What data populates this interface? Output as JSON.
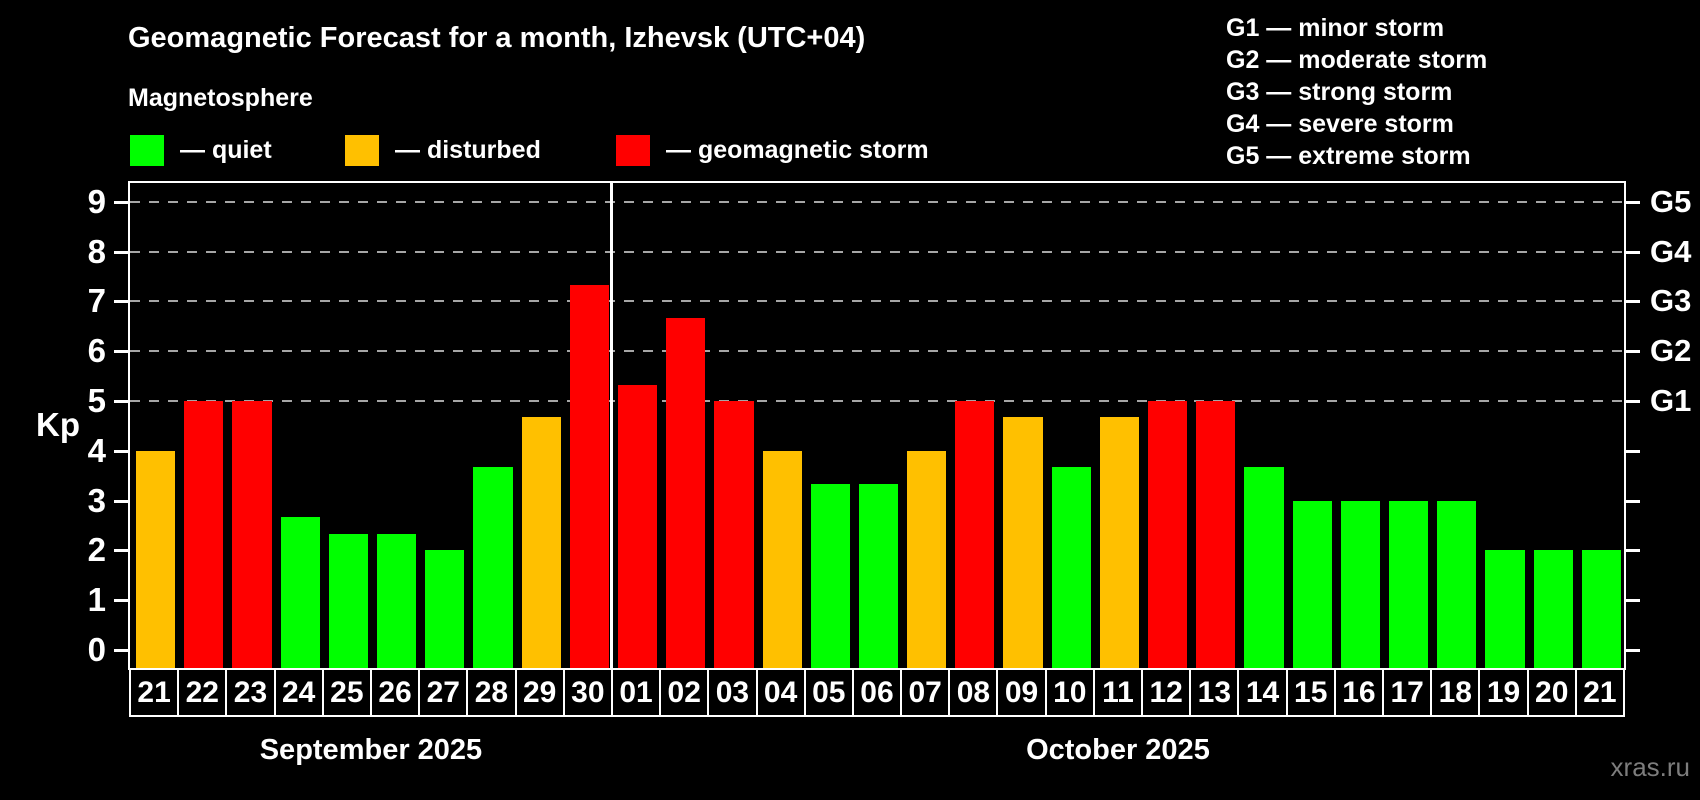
{
  "header": {
    "title": "Geomagnetic Forecast for a month, Izhevsk (UTC+04)",
    "subtitle": "Magnetosphere"
  },
  "legend": {
    "items": [
      {
        "name": "quiet",
        "label": "— quiet",
        "color": "#00ff00"
      },
      {
        "name": "disturbed",
        "label": "— disturbed",
        "color": "#ffc000"
      },
      {
        "name": "storm",
        "label": "— geomagnetic storm",
        "color": "#ff0000"
      }
    ]
  },
  "storm_scale_legend": [
    "G1 — minor storm",
    "G2 — moderate storm",
    "G3 — strong storm",
    "G4 — severe storm",
    "G5 — extreme storm"
  ],
  "watermark": "xras.ru",
  "colors": {
    "background": "#000000",
    "axis": "#ffffff",
    "grid": "#a6a6a6",
    "quiet": "#00ff00",
    "disturbed": "#ffc000",
    "storm": "#ff0000",
    "watermark": "#7d7d7d"
  },
  "chart_data": {
    "type": "bar",
    "title": "Geomagnetic Forecast for a month, Izhevsk (UTC+04)",
    "xlabel": "",
    "ylabel": "Kp",
    "ylim": [
      0,
      9
    ],
    "yticks": [
      0,
      1,
      2,
      3,
      4,
      5,
      6,
      7,
      8,
      9
    ],
    "gridlines_at_kp": [
      5,
      6,
      7,
      8,
      9
    ],
    "grid": "dashed, only at G-storm levels",
    "legend_position": "top",
    "right_axis_labels": [
      {
        "kp": 5,
        "label": "G1"
      },
      {
        "kp": 6,
        "label": "G2"
      },
      {
        "kp": 7,
        "label": "G3"
      },
      {
        "kp": 8,
        "label": "G4"
      },
      {
        "kp": 9,
        "label": "G5"
      }
    ],
    "status_colors": {
      "quiet": "#00ff00",
      "disturbed": "#ffc000",
      "storm": "#ff0000"
    },
    "months": [
      {
        "label": "September 2025",
        "days": 10
      },
      {
        "label": "October 2025",
        "days": 21
      }
    ],
    "bars": [
      {
        "day": "21",
        "month": "September 2025",
        "kp": 4.0,
        "status": "disturbed"
      },
      {
        "day": "22",
        "month": "September 2025",
        "kp": 5.0,
        "status": "storm"
      },
      {
        "day": "23",
        "month": "September 2025",
        "kp": 5.0,
        "status": "storm"
      },
      {
        "day": "24",
        "month": "September 2025",
        "kp": 2.67,
        "status": "quiet"
      },
      {
        "day": "25",
        "month": "September 2025",
        "kp": 2.33,
        "status": "quiet"
      },
      {
        "day": "26",
        "month": "September 2025",
        "kp": 2.33,
        "status": "quiet"
      },
      {
        "day": "27",
        "month": "September 2025",
        "kp": 2.0,
        "status": "quiet"
      },
      {
        "day": "28",
        "month": "September 2025",
        "kp": 3.67,
        "status": "quiet"
      },
      {
        "day": "29",
        "month": "September 2025",
        "kp": 4.67,
        "status": "disturbed"
      },
      {
        "day": "30",
        "month": "September 2025",
        "kp": 7.33,
        "status": "storm"
      },
      {
        "day": "01",
        "month": "October 2025",
        "kp": 5.33,
        "status": "storm"
      },
      {
        "day": "02",
        "month": "October 2025",
        "kp": 6.67,
        "status": "storm"
      },
      {
        "day": "03",
        "month": "October 2025",
        "kp": 5.0,
        "status": "storm"
      },
      {
        "day": "04",
        "month": "October 2025",
        "kp": 4.0,
        "status": "disturbed"
      },
      {
        "day": "05",
        "month": "October 2025",
        "kp": 3.33,
        "status": "quiet"
      },
      {
        "day": "06",
        "month": "October 2025",
        "kp": 3.33,
        "status": "quiet"
      },
      {
        "day": "07",
        "month": "October 2025",
        "kp": 4.0,
        "status": "disturbed"
      },
      {
        "day": "08",
        "month": "October 2025",
        "kp": 5.0,
        "status": "storm"
      },
      {
        "day": "09",
        "month": "October 2025",
        "kp": 4.67,
        "status": "disturbed"
      },
      {
        "day": "10",
        "month": "October 2025",
        "kp": 3.67,
        "status": "quiet"
      },
      {
        "day": "11",
        "month": "October 2025",
        "kp": 4.67,
        "status": "disturbed"
      },
      {
        "day": "12",
        "month": "October 2025",
        "kp": 5.0,
        "status": "storm"
      },
      {
        "day": "13",
        "month": "October 2025",
        "kp": 5.0,
        "status": "storm"
      },
      {
        "day": "14",
        "month": "October 2025",
        "kp": 3.67,
        "status": "quiet"
      },
      {
        "day": "15",
        "month": "October 2025",
        "kp": 3.0,
        "status": "quiet"
      },
      {
        "day": "16",
        "month": "October 2025",
        "kp": 3.0,
        "status": "quiet"
      },
      {
        "day": "17",
        "month": "October 2025",
        "kp": 3.0,
        "status": "quiet"
      },
      {
        "day": "18",
        "month": "October 2025",
        "kp": 3.0,
        "status": "quiet"
      },
      {
        "day": "19",
        "month": "October 2025",
        "kp": 2.0,
        "status": "quiet"
      },
      {
        "day": "20",
        "month": "October 2025",
        "kp": 2.0,
        "status": "quiet"
      },
      {
        "day": "21",
        "month": "October 2025",
        "kp": 2.0,
        "status": "quiet"
      }
    ]
  }
}
